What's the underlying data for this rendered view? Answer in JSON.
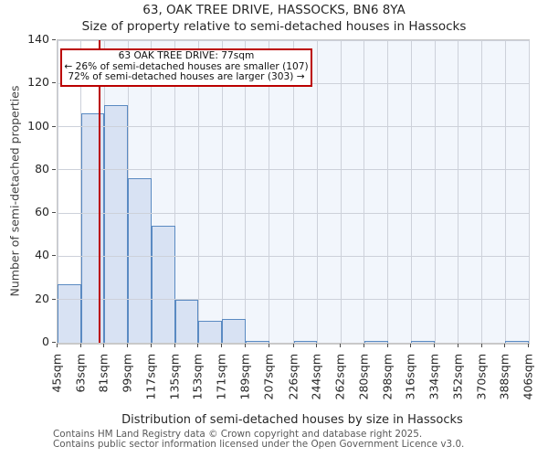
{
  "title": "63, OAK TREE DRIVE, HASSOCKS, BN6 8YA",
  "subtitle": "Size of property relative to semi-detached houses in Hassocks",
  "annotation": {
    "line1": "63 OAK TREE DRIVE: 77sqm",
    "line2": "← 26% of semi-detached houses are smaller (107)",
    "line3": "72% of semi-detached houses are larger (303) →"
  },
  "footer": {
    "line1": "Contains HM Land Registry data © Crown copyright and database right 2025.",
    "line2": "Contains public sector information licensed under the Open Government Licence v3.0."
  },
  "chart_data": {
    "type": "bar",
    "title": "63, OAK TREE DRIVE, HASSOCKS, BN6 8YA",
    "subtitle": "Size of property relative to semi-detached houses in Hassocks",
    "xlabel": "Distribution of semi-detached houses by size in Hassocks",
    "ylabel": "Number of semi-detached properties",
    "bin_edges": [
      45,
      63,
      81,
      99,
      117,
      135,
      153,
      171,
      189,
      207,
      226,
      244,
      262,
      280,
      298,
      316,
      334,
      352,
      370,
      388,
      406
    ],
    "x_tick_labels": [
      "45sqm",
      "63sqm",
      "81sqm",
      "99sqm",
      "117sqm",
      "135sqm",
      "153sqm",
      "171sqm",
      "189sqm",
      "207sqm",
      "226sqm",
      "244sqm",
      "262sqm",
      "280sqm",
      "298sqm",
      "316sqm",
      "334sqm",
      "352sqm",
      "370sqm",
      "388sqm",
      "406sqm"
    ],
    "values": [
      27,
      106,
      110,
      76,
      54,
      20,
      10,
      11,
      1,
      0,
      1,
      0,
      0,
      1,
      0,
      1,
      0,
      0,
      0,
      1
    ],
    "y_ticks": [
      0,
      20,
      40,
      60,
      80,
      100,
      120,
      140
    ],
    "ylim": [
      0,
      140
    ],
    "xlim": [
      45,
      406
    ],
    "marker_value": 77,
    "marker_label": "77sqm",
    "grid": true,
    "legend": "none",
    "colors": {
      "bar_fill": "#d8e2f3",
      "bar_edge": "#5a8ac2",
      "marker_line": "#bb0000",
      "shade_region": "#f2f6fc",
      "gridline": "#cdd1da",
      "spine": "#c9c9c9",
      "annotation_border": "#bb0000",
      "footer_text": "#595959"
    }
  }
}
